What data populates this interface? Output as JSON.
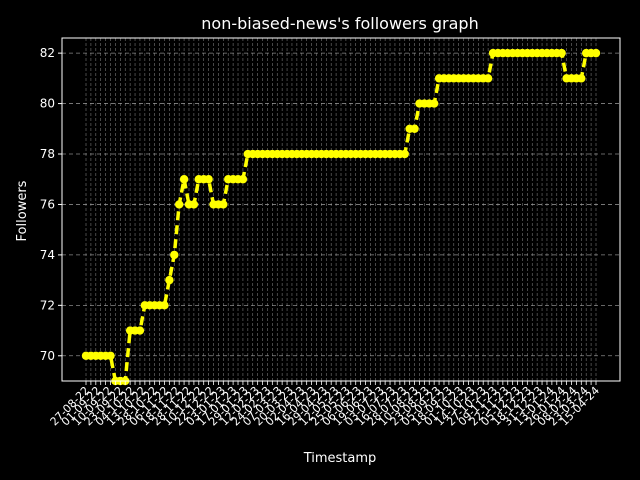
{
  "chart_data": {
    "type": "line",
    "title": "non-biased-news's followers graph",
    "xlabel": "Timestamp",
    "ylabel": "Followers",
    "ylim": [
      69.0,
      82.6
    ],
    "yticks": [
      70,
      72,
      74,
      76,
      78,
      80,
      82
    ],
    "grid": true,
    "line_style": "dashed",
    "marker": "circle",
    "colors": {
      "background": "#000000",
      "series": "#ffff00",
      "grid": "#aaaaaa",
      "axes": "#ffffff"
    },
    "series": [
      {
        "values": [
          70,
          70,
          70,
          70,
          70,
          70,
          69,
          69,
          69,
          71,
          71,
          71,
          72,
          72,
          72,
          72,
          72,
          73,
          74,
          76,
          77,
          76,
          76,
          77,
          77,
          77,
          76,
          76,
          76,
          77,
          77,
          77,
          77,
          78,
          78,
          78,
          78,
          78,
          78,
          78,
          78,
          78,
          78,
          78,
          78,
          78,
          78,
          78,
          78,
          78,
          78,
          78,
          78,
          78,
          78,
          78,
          78,
          78,
          78,
          78,
          78,
          78,
          78,
          78,
          78,
          78,
          79,
          79,
          80,
          80,
          80,
          80,
          81,
          81,
          81,
          81,
          81,
          81,
          81,
          81,
          81,
          81,
          81,
          82,
          82,
          82,
          82,
          82,
          82,
          82,
          82,
          82,
          82,
          82,
          82,
          82,
          82,
          82,
          81,
          81,
          81,
          81,
          82,
          82,
          82
        ]
      }
    ],
    "x_tick_labels": [
      "27-08-22",
      "01-09-22",
      "10-09-22",
      "23-09-22",
      "04-10-22",
      "13-10-22",
      "28-10-22",
      "06-11-22",
      "18-11-22",
      "28-11-22",
      "10-12-22",
      "22-12-22",
      "03-01-23",
      "17-01-23",
      "29-01-23",
      "12-02-23",
      "24-02-23",
      "07-03-23",
      "20-03-23",
      "02-04-23",
      "16-04-23",
      "29-04-23",
      "12-05-23",
      "25-05-23",
      "06-06-23",
      "19-06-23",
      "03-07-23",
      "16-07-23",
      "28-07-23",
      "10-08-23",
      "23-08-23",
      "05-09-23",
      "18-09-23",
      "01-10-23",
      "14-10-23",
      "27-10-23",
      "09-11-23",
      "22-11-23",
      "05-12-23",
      "18-12-23",
      "31-12-23",
      "13-01-24",
      "26-01-24",
      "08-02-24",
      "23-03-24",
      "15-04-24"
    ]
  }
}
